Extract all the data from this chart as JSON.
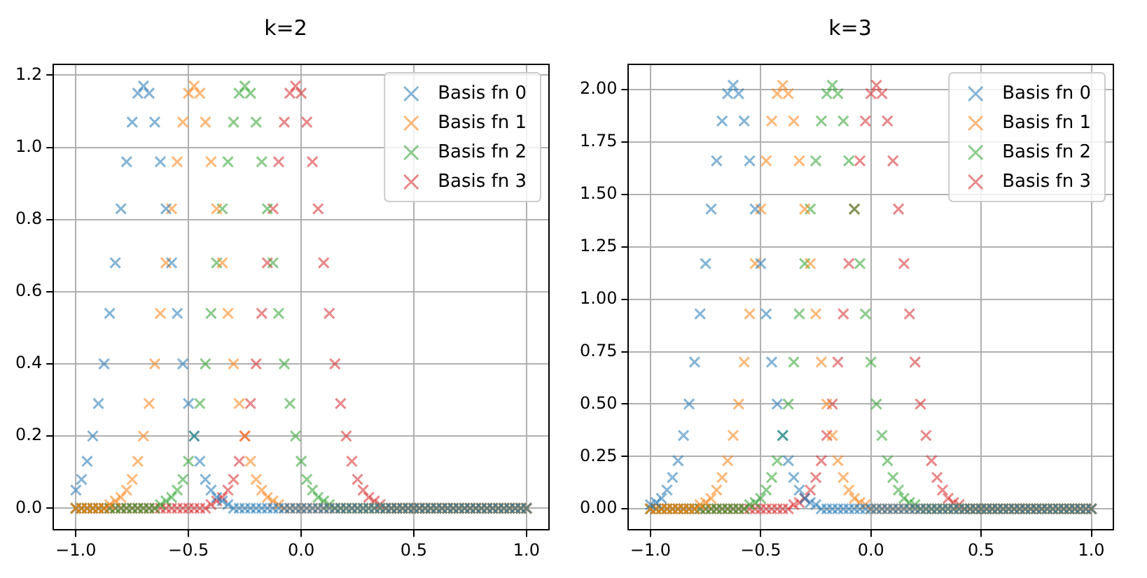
{
  "chart_data": [
    {
      "type": "scatter",
      "title": "k=2",
      "marker": "cross",
      "grid": true,
      "legend": "top right",
      "x": [
        -1.0,
        -0.975,
        -0.95,
        -0.925,
        -0.9,
        -0.875,
        -0.85,
        -0.825,
        -0.8,
        -0.775,
        -0.75,
        -0.725,
        -0.7,
        -0.675,
        -0.65,
        -0.625,
        -0.6,
        -0.575,
        -0.55,
        -0.525,
        -0.5,
        -0.475,
        -0.45,
        -0.425,
        -0.4,
        -0.375,
        -0.35,
        -0.325,
        -0.3,
        -0.275,
        -0.25,
        -0.225,
        -0.2,
        -0.175,
        -0.15,
        -0.125,
        -0.1,
        -0.075,
        -0.05,
        -0.025,
        0.0,
        0.025,
        0.05,
        0.075,
        0.1,
        0.125,
        0.15,
        0.175,
        0.2,
        0.225,
        0.25,
        0.275,
        0.3,
        0.325,
        0.35,
        0.375,
        0.4,
        0.425,
        0.45,
        0.475,
        0.5,
        0.525,
        0.55,
        0.575,
        0.6,
        0.625,
        0.65,
        0.675,
        0.7,
        0.725,
        0.75,
        0.775,
        0.8,
        0.825,
        0.85,
        0.875,
        0.9,
        0.925,
        0.95,
        0.975,
        1.0
      ],
      "xlim": [
        -1.1,
        1.1
      ],
      "xticks": [
        {
          "value": -1,
          "label": "−1.0"
        },
        {
          "value": -0.5,
          "label": "−0.5"
        },
        {
          "value": 0,
          "label": "0.0"
        },
        {
          "value": 0.5,
          "label": "0.5"
        },
        {
          "value": 1,
          "label": "1.0"
        }
      ],
      "ylim": [
        -0.06,
        1.23
      ],
      "yticks": [
        {
          "value": 0,
          "label": "0.0"
        },
        {
          "value": 0.2,
          "label": "0.2"
        },
        {
          "value": 0.4,
          "label": "0.4"
        },
        {
          "value": 0.6,
          "label": "0.6"
        },
        {
          "value": 0.8,
          "label": "0.8"
        },
        {
          "value": 1.0,
          "label": "1.0"
        },
        {
          "value": 1.2,
          "label": "1.2"
        }
      ],
      "series": [
        {
          "name": "Basis fn 0",
          "color": "#1f77b4",
          "values": [
            0.05,
            0.08,
            0.13,
            0.2,
            0.29,
            0.4,
            0.54,
            0.68,
            0.83,
            0.96,
            1.07,
            1.15,
            1.17,
            1.15,
            1.07,
            0.96,
            0.83,
            0.68,
            0.54,
            0.4,
            0.29,
            0.2,
            0.13,
            0.08,
            0.05,
            0.03,
            0.02,
            0.01,
            0,
            0,
            0,
            0,
            0,
            0,
            0,
            0,
            0,
            0,
            0,
            0,
            0,
            0,
            0,
            0,
            0,
            0,
            0,
            0,
            0,
            0,
            0,
            0,
            0,
            0,
            0,
            0,
            0,
            0,
            0,
            0,
            0,
            0,
            0,
            0,
            0,
            0,
            0,
            0,
            0,
            0,
            0,
            0,
            0,
            0,
            0,
            0,
            0,
            0,
            0,
            0,
            0
          ]
        },
        {
          "name": "Basis fn 1",
          "color": "#ff7f0e",
          "values": [
            0,
            0,
            0,
            0,
            0,
            0,
            0.01,
            0.02,
            0.03,
            0.05,
            0.08,
            0.13,
            0.2,
            0.29,
            0.4,
            0.54,
            0.68,
            0.83,
            0.96,
            1.07,
            1.15,
            1.17,
            1.15,
            1.07,
            0.96,
            0.83,
            0.68,
            0.54,
            0.4,
            0.29,
            0.2,
            0.13,
            0.08,
            0.05,
            0.03,
            0.02,
            0.01,
            0,
            0,
            0,
            0,
            0,
            0,
            0,
            0,
            0,
            0,
            0,
            0,
            0,
            0,
            0,
            0,
            0,
            0,
            0,
            0,
            0,
            0,
            0,
            0,
            0,
            0,
            0,
            0,
            0,
            0,
            0,
            0,
            0,
            0,
            0,
            0,
            0,
            0,
            0,
            0,
            0,
            0,
            0,
            0
          ]
        },
        {
          "name": "Basis fn 2",
          "color": "#2ca02c",
          "values": [
            0,
            0,
            0,
            0,
            0,
            0,
            0,
            0,
            0,
            0,
            0,
            0,
            0,
            0,
            0,
            0.01,
            0.02,
            0.03,
            0.05,
            0.08,
            0.13,
            0.2,
            0.29,
            0.4,
            0.54,
            0.68,
            0.83,
            0.96,
            1.07,
            1.15,
            1.17,
            1.15,
            1.07,
            0.96,
            0.83,
            0.68,
            0.54,
            0.4,
            0.29,
            0.2,
            0.13,
            0.08,
            0.05,
            0.03,
            0.02,
            0.01,
            0,
            0,
            0,
            0,
            0,
            0,
            0,
            0,
            0,
            0,
            0,
            0,
            0,
            0,
            0,
            0,
            0,
            0,
            0,
            0,
            0,
            0,
            0,
            0,
            0,
            0,
            0,
            0,
            0,
            0,
            0,
            0,
            0,
            0,
            0
          ]
        },
        {
          "name": "Basis fn 3",
          "color": "#d62728",
          "values": [
            0,
            0,
            0,
            0,
            0,
            0,
            0,
            0,
            0,
            0,
            0,
            0,
            0,
            0,
            0,
            0,
            0,
            0,
            0,
            0,
            0,
            0,
            0,
            0,
            0.01,
            0.02,
            0.03,
            0.05,
            0.08,
            0.13,
            0.2,
            0.29,
            0.4,
            0.54,
            0.68,
            0.83,
            0.96,
            1.07,
            1.15,
            1.17,
            1.15,
            1.07,
            0.96,
            0.83,
            0.68,
            0.54,
            0.4,
            0.29,
            0.2,
            0.13,
            0.08,
            0.05,
            0.03,
            0.02,
            0.01,
            0,
            0,
            0,
            0,
            0,
            0,
            0,
            0,
            0,
            0,
            0,
            0,
            0,
            0,
            0,
            0,
            0,
            0,
            0,
            0,
            0,
            0,
            0,
            0,
            0,
            0
          ]
        }
      ]
    },
    {
      "type": "scatter",
      "title": "k=3",
      "marker": "cross",
      "grid": true,
      "legend": "top right",
      "x": [
        -1.0,
        -0.975,
        -0.95,
        -0.925,
        -0.9,
        -0.875,
        -0.85,
        -0.825,
        -0.8,
        -0.775,
        -0.75,
        -0.725,
        -0.7,
        -0.675,
        -0.65,
        -0.625,
        -0.6,
        -0.575,
        -0.55,
        -0.525,
        -0.5,
        -0.475,
        -0.45,
        -0.425,
        -0.4,
        -0.375,
        -0.35,
        -0.325,
        -0.3,
        -0.275,
        -0.25,
        -0.225,
        -0.2,
        -0.175,
        -0.15,
        -0.125,
        -0.1,
        -0.075,
        -0.05,
        -0.025,
        0.0,
        0.025,
        0.05,
        0.075,
        0.1,
        0.125,
        0.15,
        0.175,
        0.2,
        0.225,
        0.25,
        0.275,
        0.3,
        0.325,
        0.35,
        0.375,
        0.4,
        0.425,
        0.45,
        0.475,
        0.5,
        0.525,
        0.55,
        0.575,
        0.6,
        0.625,
        0.65,
        0.675,
        0.7,
        0.725,
        0.75,
        0.775,
        0.8,
        0.825,
        0.85,
        0.875,
        0.9,
        0.925,
        0.95,
        0.975,
        1.0
      ],
      "xlim": [
        -1.1,
        1.1
      ],
      "xticks": [
        {
          "value": -1,
          "label": "−1.0"
        },
        {
          "value": -0.5,
          "label": "−0.5"
        },
        {
          "value": 0,
          "label": "0.0"
        },
        {
          "value": 0.5,
          "label": "0.5"
        },
        {
          "value": 1,
          "label": "1.0"
        }
      ],
      "ylim": [
        -0.1,
        2.12
      ],
      "yticks": [
        {
          "value": 0,
          "label": "0.00"
        },
        {
          "value": 0.25,
          "label": "0.25"
        },
        {
          "value": 0.5,
          "label": "0.50"
        },
        {
          "value": 0.75,
          "label": "0.75"
        },
        {
          "value": 1.0,
          "label": "1.00"
        },
        {
          "value": 1.25,
          "label": "1.25"
        },
        {
          "value": 1.5,
          "label": "1.50"
        },
        {
          "value": 1.75,
          "label": "1.75"
        },
        {
          "value": 2.0,
          "label": "2.00"
        }
      ],
      "series": [
        {
          "name": "Basis fn 0",
          "color": "#1f77b4",
          "values": [
            0.02,
            0.03,
            0.05,
            0.09,
            0.15,
            0.23,
            0.35,
            0.5,
            0.7,
            0.93,
            1.17,
            1.43,
            1.66,
            1.85,
            1.98,
            2.02,
            1.98,
            1.85,
            1.66,
            1.43,
            1.17,
            0.93,
            0.7,
            0.5,
            0.35,
            0.23,
            0.15,
            0.09,
            0.05,
            0.03,
            0.02,
            0,
            0,
            0,
            0,
            0,
            0,
            0,
            0,
            0,
            0,
            0,
            0,
            0,
            0,
            0,
            0,
            0,
            0,
            0,
            0,
            0,
            0,
            0,
            0,
            0,
            0,
            0,
            0,
            0,
            0,
            0,
            0,
            0,
            0,
            0,
            0,
            0,
            0,
            0,
            0,
            0,
            0,
            0,
            0,
            0,
            0,
            0,
            0,
            0,
            0
          ]
        },
        {
          "name": "Basis fn 1",
          "color": "#ff7f0e",
          "values": [
            0,
            0,
            0,
            0,
            0,
            0,
            0,
            0,
            0,
            0.02,
            0.03,
            0.05,
            0.09,
            0.15,
            0.23,
            0.35,
            0.5,
            0.7,
            0.93,
            1.17,
            1.43,
            1.66,
            1.85,
            1.98,
            2.02,
            1.98,
            1.85,
            1.66,
            1.43,
            1.17,
            0.93,
            0.7,
            0.5,
            0.35,
            0.23,
            0.15,
            0.09,
            0.05,
            0.03,
            0.02,
            0,
            0,
            0,
            0,
            0,
            0,
            0,
            0,
            0,
            0,
            0,
            0,
            0,
            0,
            0,
            0,
            0,
            0,
            0,
            0,
            0,
            0,
            0,
            0,
            0,
            0,
            0,
            0,
            0,
            0,
            0,
            0,
            0,
            0,
            0,
            0,
            0,
            0,
            0,
            0,
            0
          ]
        },
        {
          "name": "Basis fn 2",
          "color": "#2ca02c",
          "values": [
            0,
            0,
            0,
            0,
            0,
            0,
            0,
            0,
            0,
            0,
            0,
            0,
            0,
            0,
            0,
            0,
            0,
            0,
            0.02,
            0.03,
            0.05,
            0.09,
            0.15,
            0.23,
            0.35,
            0.5,
            0.7,
            0.93,
            1.17,
            1.43,
            1.66,
            1.85,
            1.98,
            2.02,
            1.98,
            1.85,
            1.66,
            1.43,
            1.17,
            0.93,
            0.7,
            0.5,
            0.35,
            0.23,
            0.15,
            0.09,
            0.05,
            0.03,
            0.02,
            0,
            0,
            0,
            0,
            0,
            0,
            0,
            0,
            0,
            0,
            0,
            0,
            0,
            0,
            0,
            0,
            0,
            0,
            0,
            0,
            0,
            0,
            0,
            0,
            0,
            0,
            0,
            0,
            0,
            0,
            0,
            0
          ]
        },
        {
          "name": "Basis fn 3",
          "color": "#d62728",
          "values": [
            0,
            0,
            0,
            0,
            0,
            0,
            0,
            0,
            0,
            0,
            0,
            0,
            0,
            0,
            0,
            0,
            0,
            0,
            0,
            0,
            0,
            0,
            0,
            0,
            0,
            0,
            0.02,
            0.03,
            0.05,
            0.09,
            0.15,
            0.23,
            0.35,
            0.5,
            0.7,
            0.93,
            1.17,
            1.43,
            1.66,
            1.85,
            1.98,
            2.02,
            1.98,
            1.85,
            1.66,
            1.43,
            1.17,
            0.93,
            0.7,
            0.5,
            0.35,
            0.23,
            0.15,
            0.09,
            0.05,
            0.03,
            0.02,
            0,
            0,
            0,
            0,
            0,
            0,
            0,
            0,
            0,
            0,
            0,
            0,
            0,
            0,
            0,
            0,
            0,
            0,
            0,
            0,
            0,
            0,
            0,
            0
          ]
        }
      ]
    }
  ]
}
